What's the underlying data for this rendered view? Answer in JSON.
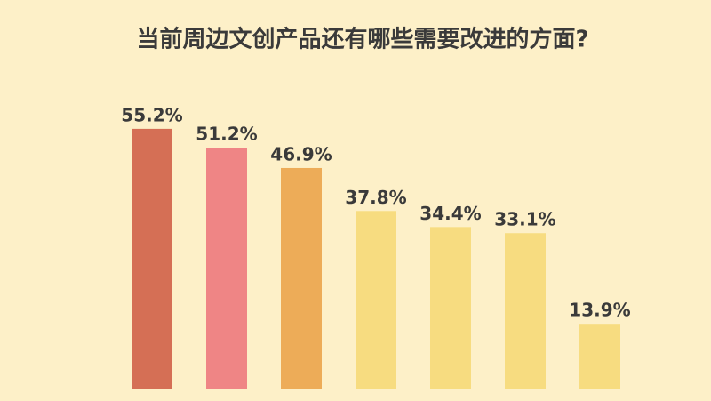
{
  "chart_data": {
    "type": "bar",
    "title": "当前周边文创产品还有哪些需要改进的方面?",
    "values": [
      55.2,
      51.2,
      46.9,
      37.8,
      34.4,
      33.1,
      13.9
    ],
    "value_labels": [
      "55.2%",
      "51.2%",
      "46.9%",
      "37.8%",
      "34.4%",
      "33.1%",
      "13.9%"
    ],
    "colors": [
      "#d56f55",
      "#ef8585",
      "#edac58",
      "#f7dc80",
      "#f7dc80",
      "#f7dc80",
      "#f7dc80"
    ]
  }
}
